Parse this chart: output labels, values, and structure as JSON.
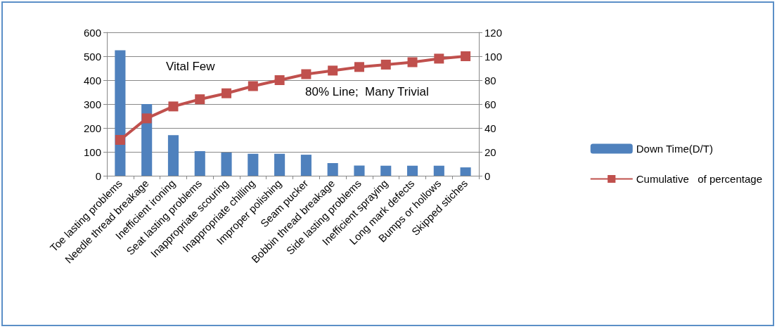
{
  "chart_data": {
    "type": "bar",
    "categories": [
      "Toe lasting problems",
      "Needle thread breakage",
      "Inefficient ironing",
      "Seat lasting problems",
      "Inappropriate scouring",
      "Inappropriate chilling",
      "Improper polishing",
      "Seam pucker",
      "Bobbin thread breakage",
      "Side lasting problems",
      "Inefficient spraying",
      "Long mark defects",
      "Bumps or hollows",
      "Skipped stiches"
    ],
    "series": [
      {
        "name": "Down Time(D/T)",
        "color": "#4f81bd",
        "values": [
          525,
          300,
          170,
          103,
          97,
          92,
          92,
          88,
          53,
          43,
          42,
          42,
          42,
          35
        ]
      },
      {
        "name": "Cumulative   of percentage",
        "type": "line",
        "axis": "y2",
        "color": "#c0504d",
        "marker": "square",
        "values": [
          30,
          48,
          58,
          64,
          69,
          75,
          80,
          85,
          88,
          91,
          93,
          95,
          98,
          100
        ]
      }
    ],
    "ylim": [
      0,
      600
    ],
    "yticks": [
      0,
      100,
      200,
      300,
      400,
      500,
      600
    ],
    "y2lim": [
      0,
      120
    ],
    "y2ticks": [
      0,
      20,
      40,
      60,
      80,
      100,
      120
    ],
    "annotations": [
      "Vital Few",
      "80% Line;  Many Trivial"
    ],
    "grid": "y",
    "legend": "right"
  }
}
